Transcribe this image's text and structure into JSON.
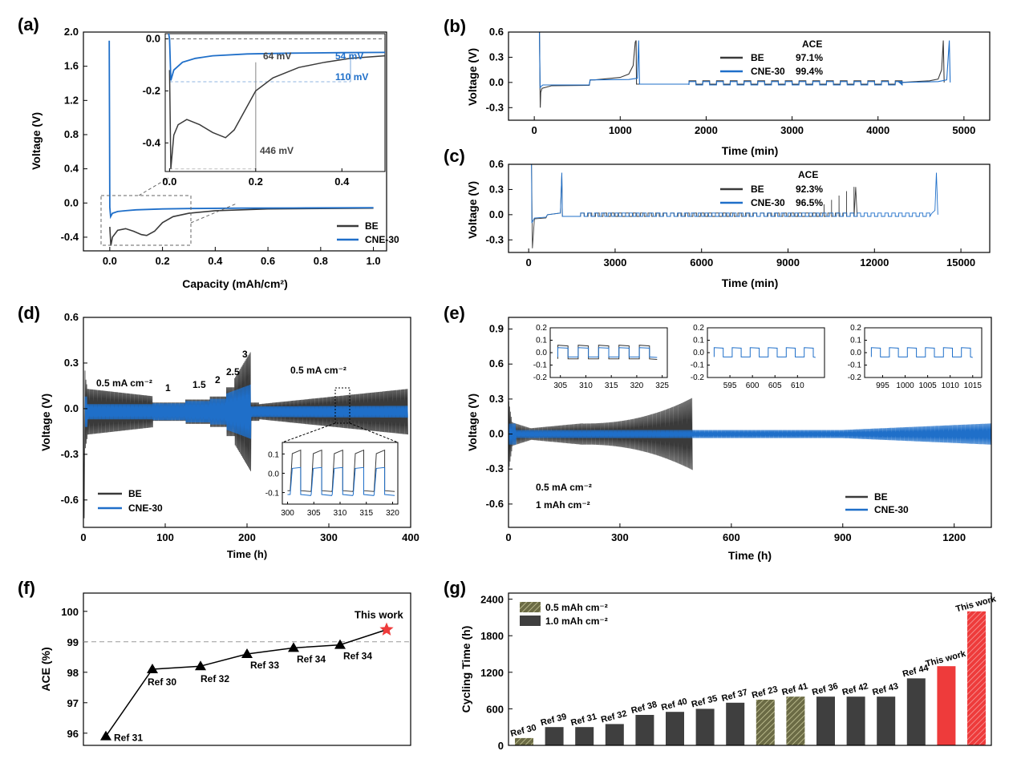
{
  "colors": {
    "be": "#3a3a3a",
    "cne": "#1f6fc9",
    "hatch": "#5a5a3a",
    "red": "#ee3b3b",
    "grey": "#999999",
    "lightblue": "#8fb5e0"
  },
  "panel_labels": [
    "(a)",
    "(b)",
    "(c)",
    "(d)",
    "(e)",
    "(f)",
    "(g)"
  ],
  "legend": {
    "be": "BE",
    "cne": "CNE-30"
  },
  "chart_data": [
    {
      "id": "a",
      "type": "line",
      "xlabel": "Capacity (mAh/cm²)",
      "ylabel": "Voltage (V)",
      "xlim": [
        -0.1,
        1.05
      ],
      "ylim": [
        -0.56,
        2.0
      ],
      "xticks": [
        0.0,
        0.2,
        0.4,
        0.6,
        0.8,
        1.0
      ],
      "xtick_labels": [
        "0.0",
        "0.2",
        "0.4",
        "0.6",
        "0.8",
        "1.0"
      ],
      "yticks": [
        -0.4,
        0.0,
        0.4,
        0.8,
        1.2,
        1.6,
        2.0
      ],
      "ytick_labels": [
        "-0.4",
        "0.0",
        "0.4",
        "0.8",
        "1.2",
        "1.6",
        "2.0"
      ],
      "legend_position": "bottom-right",
      "series": [
        {
          "name": "BE",
          "x": [
            0.0,
            0.004,
            0.01,
            0.03,
            0.06,
            0.09,
            0.12,
            0.14,
            0.17,
            0.2,
            0.24,
            0.3,
            0.4,
            0.6,
            0.8,
            1.0
          ],
          "y": [
            -0.28,
            -0.5,
            -0.4,
            -0.32,
            -0.3,
            -0.33,
            -0.37,
            -0.38,
            -0.33,
            -0.23,
            -0.16,
            -0.12,
            -0.09,
            -0.07,
            -0.065,
            -0.06
          ]
        },
        {
          "name": "CNE-30",
          "x": [
            -0.002,
            0.0,
            0.003,
            0.01,
            0.03,
            0.06,
            0.1,
            0.2,
            0.3,
            0.5,
            0.7,
            1.0
          ],
          "y": [
            1.9,
            -0.05,
            -0.16,
            -0.12,
            -0.1,
            -0.09,
            -0.08,
            -0.07,
            -0.065,
            -0.06,
            -0.058,
            -0.055
          ]
        }
      ],
      "inset": {
        "xlim": [
          -0.01,
          0.5
        ],
        "ylim": [
          -0.51,
          0.02
        ],
        "xticks": [
          0.0,
          0.2,
          0.4
        ],
        "xtick_labels": [
          "0.0",
          "0.2",
          "0.4"
        ],
        "yticks": [
          0.0,
          -0.2,
          -0.4
        ],
        "ytick_labels": [
          "0.0",
          "-0.2",
          "-0.4"
        ],
        "annotations": [
          "64 mV",
          "54 mV",
          "110 mV",
          "446 mV"
        ]
      }
    },
    {
      "id": "b",
      "type": "line",
      "xlabel": "Time (min)",
      "ylabel": "Voltage (V)",
      "xlim": [
        -300,
        5300
      ],
      "ylim": [
        -0.45,
        0.6
      ],
      "xticks": [
        0,
        1000,
        2000,
        3000,
        4000,
        5000
      ],
      "xtick_labels": [
        "0",
        "1000",
        "2000",
        "3000",
        "4000",
        "5000"
      ],
      "yticks": [
        -0.3,
        0.0,
        0.3,
        0.6
      ],
      "ytick_labels": [
        "-0.3",
        "0.0",
        "0.3",
        "0.6"
      ],
      "legend_title": "ACE",
      "ace": [
        {
          "name": "BE",
          "value": "97.1%"
        },
        {
          "name": "CNE-30",
          "value": "99.4%"
        }
      ]
    },
    {
      "id": "c",
      "type": "line",
      "xlabel": "Time (min)",
      "ylabel": "Voltage (V)",
      "xlim": [
        -700,
        16000
      ],
      "ylim": [
        -0.45,
        0.6
      ],
      "xticks": [
        0,
        3000,
        6000,
        9000,
        12000,
        15000
      ],
      "xtick_labels": [
        "0",
        "3000",
        "6000",
        "9000",
        "12000",
        "15000"
      ],
      "yticks": [
        -0.3,
        0.0,
        0.3,
        0.6
      ],
      "ytick_labels": [
        "-0.3",
        "0.0",
        "0.3",
        "0.6"
      ],
      "legend_title": "ACE",
      "ace": [
        {
          "name": "BE",
          "value": "92.3%"
        },
        {
          "name": "CNE-30",
          "value": "96.5%"
        }
      ]
    },
    {
      "id": "d",
      "type": "line",
      "xlabel": "Time (h)",
      "ylabel": "Voltage (V)",
      "xlim": [
        0,
        400
      ],
      "ylim": [
        -0.78,
        0.6
      ],
      "xticks": [
        0,
        100,
        200,
        300,
        400
      ],
      "xtick_labels": [
        "0",
        "100",
        "200",
        "300",
        "400"
      ],
      "yticks": [
        -0.6,
        -0.3,
        0.0,
        0.3,
        0.6
      ],
      "ytick_labels": [
        "-0.6",
        "-0.3",
        "0.0",
        "0.3",
        "0.6"
      ],
      "annotations": [
        "0.5 mA cm⁻²",
        "1",
        "1.5",
        "2",
        "2.5",
        "3",
        "0.5 mA cm⁻²"
      ],
      "inset": {
        "xticks": [
          300,
          305,
          310,
          315,
          320
        ],
        "xtick_labels": [
          "300",
          "305",
          "310",
          "315",
          "320"
        ],
        "yticks": [
          0.1,
          0.0,
          -0.1
        ],
        "ytick_labels": [
          "0.1",
          "0.0",
          "-0.1"
        ]
      }
    },
    {
      "id": "e",
      "type": "line",
      "xlabel": "Time (h)",
      "ylabel": "Voltage (V)",
      "xlim": [
        0,
        1300
      ],
      "ylim": [
        -0.8,
        1.0
      ],
      "xticks": [
        0,
        300,
        600,
        900,
        1200
      ],
      "xtick_labels": [
        "0",
        "300",
        "600",
        "900",
        "1200"
      ],
      "yticks": [
        -0.6,
        -0.3,
        0.0,
        0.3,
        0.6,
        0.9
      ],
      "ytick_labels": [
        "-0.6",
        "-0.3",
        "0.0",
        "0.3",
        "0.6",
        "0.9"
      ],
      "annotations": [
        "0.5 mA cm⁻²",
        "1 mAh cm⁻²"
      ],
      "insets": [
        {
          "xtick_labels": [
            "305",
            "310",
            "315",
            "320",
            "325"
          ],
          "ytick_labels": [
            "0.2",
            "0.1",
            "0.0",
            "-0.1",
            "-0.2"
          ]
        },
        {
          "xtick_labels": [
            "595",
            "600",
            "605",
            "610"
          ],
          "ytick_labels": [
            "0.2",
            "0.1",
            "0.0",
            "-0.1",
            "-0.2"
          ]
        },
        {
          "xtick_labels": [
            "995",
            "1000",
            "1005",
            "1010",
            "1015"
          ],
          "ytick_labels": [
            "0.2",
            "0.1",
            "0.0",
            "-0.1",
            "-0.2"
          ]
        }
      ]
    },
    {
      "id": "f",
      "type": "scatter",
      "ylabel": "ACE (%)",
      "ylim": [
        95.6,
        100.6
      ],
      "yticks": [
        96,
        97,
        98,
        99,
        100
      ],
      "ytick_labels": [
        "96",
        "97",
        "98",
        "99",
        "100"
      ],
      "points": [
        {
          "label": "Ref 31",
          "value": 95.9
        },
        {
          "label": "Ref 30",
          "value": 98.1
        },
        {
          "label": "Ref 32",
          "value": 98.2
        },
        {
          "label": "Ref 33",
          "value": 98.6
        },
        {
          "label": "Ref 34",
          "value": 98.8
        },
        {
          "label": "Ref 34",
          "value": 98.9
        },
        {
          "label": "This work",
          "value": 99.4
        }
      ],
      "reference_line": 99.0
    },
    {
      "id": "g",
      "type": "bar",
      "ylabel": "Cycling Time (h)",
      "ylim": [
        0,
        2500
      ],
      "yticks": [
        0,
        600,
        1200,
        1800,
        2400
      ],
      "ytick_labels": [
        "0",
        "600",
        "1200",
        "1800",
        "2400"
      ],
      "legend": [
        "0.5 mAh cm⁻²",
        "1.0 mAh cm⁻²"
      ],
      "categories": [
        "Ref 30",
        "Ref 39",
        "Ref 31",
        "Ref 32",
        "Ref 38",
        "Ref 40",
        "Ref 35",
        "Ref 37",
        "Ref 23",
        "Ref 41",
        "Ref 36",
        "Ref 42",
        "Ref 43",
        "Ref 44",
        "This work",
        "This work"
      ],
      "values": [
        120,
        300,
        300,
        350,
        500,
        550,
        600,
        700,
        750,
        800,
        800,
        800,
        800,
        1100,
        1300,
        2200
      ],
      "kinds": [
        "hatch",
        "solid",
        "solid",
        "solid",
        "solid",
        "solid",
        "solid",
        "solid",
        "hatch",
        "hatch",
        "solid",
        "solid",
        "solid",
        "solid",
        "red",
        "redhatch"
      ]
    }
  ]
}
